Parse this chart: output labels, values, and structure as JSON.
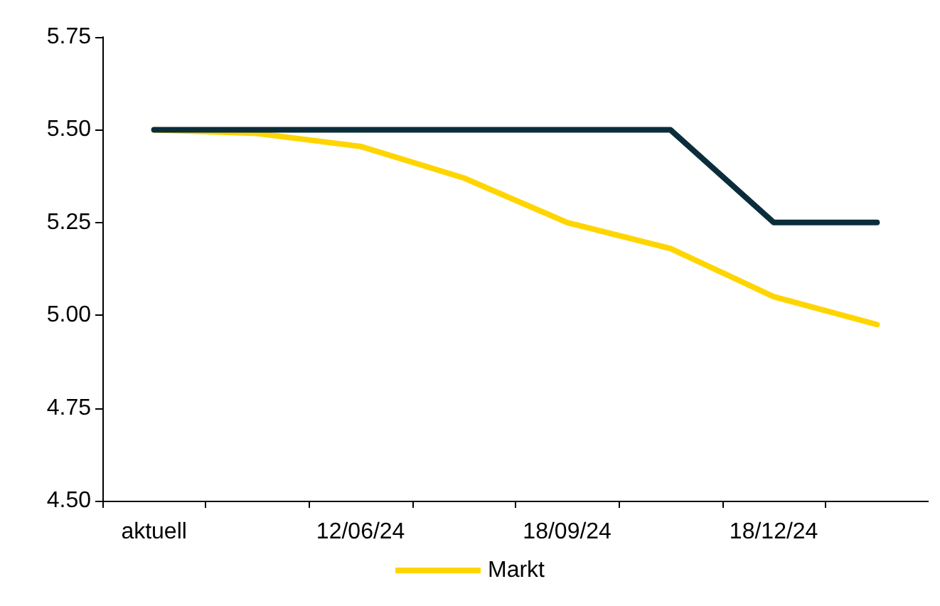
{
  "chart_data": {
    "type": "line",
    "categories": [
      "aktuell",
      null,
      "12/06/24",
      null,
      "18/09/24",
      null,
      "18/12/24",
      null
    ],
    "series": [
      {
        "name": "Markt",
        "color": "#ffd500",
        "values": [
          5.5,
          5.49,
          5.455,
          5.37,
          5.25,
          5.18,
          5.05,
          4.975
        ]
      },
      {
        "color": "#0b2d3b",
        "values": [
          5.5,
          5.5,
          5.5,
          5.5,
          5.5,
          5.5,
          5.25,
          5.25
        ]
      }
    ],
    "ylim": [
      4.5,
      5.75
    ],
    "yticks": [
      {
        "value": 4.5,
        "label": "4.50"
      },
      4.75,
      {
        "value": 5.0,
        "label": "5.00"
      },
      5.25,
      {
        "value": 5.5,
        "label": "5.50"
      },
      5.75
    ],
    "grid": false,
    "legend": "bottom",
    "marker": "none",
    "line_style": "solid"
  }
}
